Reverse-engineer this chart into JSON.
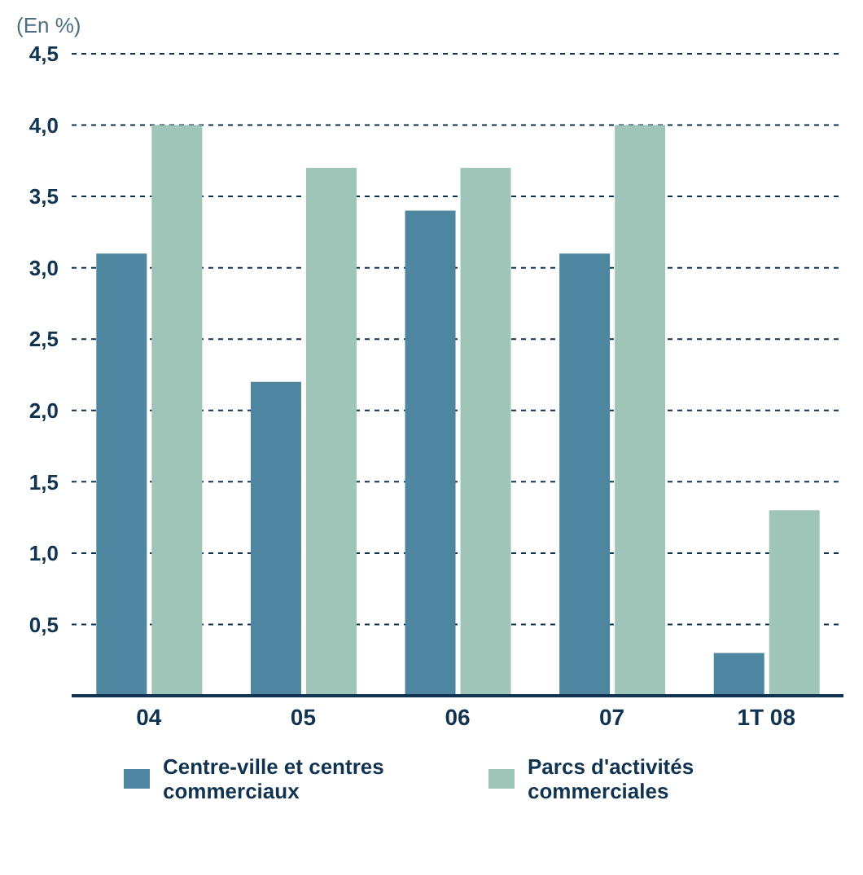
{
  "chart_data": {
    "type": "bar",
    "ylabel": "(En %)",
    "categories": [
      "04",
      "05",
      "06",
      "07",
      "1T 08"
    ],
    "series": [
      {
        "name": "Centre-ville et centres commerciaux",
        "color": "#4e86a0",
        "values": [
          3.1,
          2.2,
          3.4,
          3.1,
          0.3
        ]
      },
      {
        "name": "Parcs d'activités commerciales",
        "color": "#9fc5b8",
        "values": [
          4.0,
          3.7,
          3.7,
          4.0,
          1.3
        ]
      }
    ],
    "ylim": [
      0,
      4.5
    ],
    "yticks": [
      {
        "value": 0.5,
        "label": "0,5"
      },
      {
        "value": 1,
        "label": "1,0"
      },
      {
        "value": 1.5,
        "label": "1,5"
      },
      {
        "value": 2,
        "label": "2,0"
      },
      {
        "value": 2.5,
        "label": "2,5"
      },
      {
        "value": 3,
        "label": "3,0"
      },
      {
        "value": 3.5,
        "label": "3,5"
      },
      {
        "value": 4,
        "label": "4,0"
      },
      {
        "value": 4.5,
        "label": "4,5"
      }
    ],
    "grid": "y",
    "legend": "bottom"
  }
}
